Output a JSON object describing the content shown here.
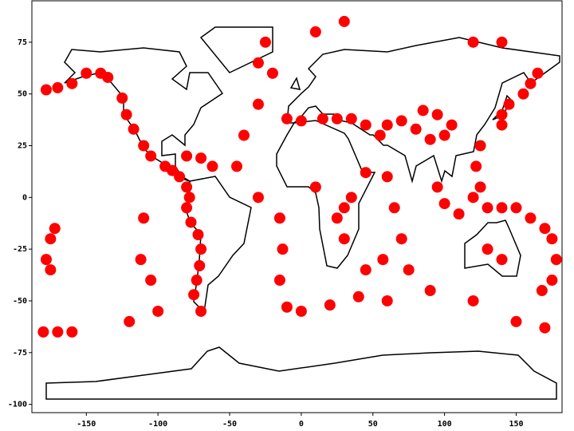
{
  "chart_data": {
    "type": "scatter",
    "color": "#ff0000",
    "xlim": [
      -188,
      182
    ],
    "ylim": [
      -104,
      95
    ],
    "xticks": [
      -150,
      -100,
      -50,
      0,
      50,
      100,
      150
    ],
    "yticks": [
      -100,
      -75,
      -50,
      -25,
      0,
      25,
      50,
      75
    ],
    "x": [
      -178,
      -170,
      -160,
      -150,
      -140,
      -135,
      -125,
      -122,
      -117,
      -110,
      -105,
      -95,
      -90,
      -85,
      -80,
      -78,
      -80,
      -77,
      -72,
      -70,
      -71,
      -73,
      -75,
      -70,
      -30,
      -20,
      -30,
      -40,
      -45,
      -30,
      -15,
      -13,
      -15,
      -10,
      0,
      20,
      40,
      60,
      90,
      120,
      150,
      170,
      -160,
      -120,
      -100,
      -170,
      -180,
      -62,
      -70,
      -80,
      -175,
      -172,
      -178,
      -175,
      -110,
      -112,
      -105,
      -10,
      0,
      15,
      25,
      35,
      45,
      55,
      60,
      70,
      80,
      90,
      100,
      105,
      95,
      85,
      60,
      65,
      70,
      75,
      57,
      45,
      45,
      35,
      30,
      140,
      145,
      155,
      160,
      165,
      140,
      125,
      122,
      125,
      120,
      110,
      100,
      95,
      130,
      140,
      150,
      160,
      170,
      175,
      178,
      175,
      168,
      -25,
      10,
      30,
      120,
      140,
      30,
      25,
      10,
      130,
      140
    ],
    "values": [
      52,
      53,
      55,
      60,
      60,
      58,
      48,
      40,
      33,
      25,
      20,
      15,
      13,
      10,
      5,
      0,
      -5,
      -12,
      -18,
      -25,
      -33,
      -40,
      -47,
      -55,
      65,
      60,
      45,
      30,
      15,
      0,
      -10,
      -25,
      -40,
      -53,
      -55,
      -52,
      -48,
      -50,
      -45,
      -50,
      -60,
      -63,
      -65,
      -60,
      -55,
      -65,
      -65,
      15,
      19,
      20,
      -20,
      -15,
      -30,
      -35,
      -10,
      -30,
      -40,
      38,
      37,
      38,
      38,
      38,
      35,
      30,
      35,
      37,
      33,
      28,
      30,
      35,
      40,
      42,
      10,
      -5,
      -20,
      -35,
      -30,
      -35,
      12,
      0,
      -5,
      40,
      45,
      50,
      55,
      60,
      35,
      25,
      15,
      5,
      0,
      -8,
      -3,
      5,
      -5,
      -5,
      -5,
      -10,
      -15,
      -20,
      -30,
      -40,
      -45,
      75,
      80,
      85,
      75,
      75,
      -20,
      -10,
      5,
      -25,
      -30
    ]
  }
}
